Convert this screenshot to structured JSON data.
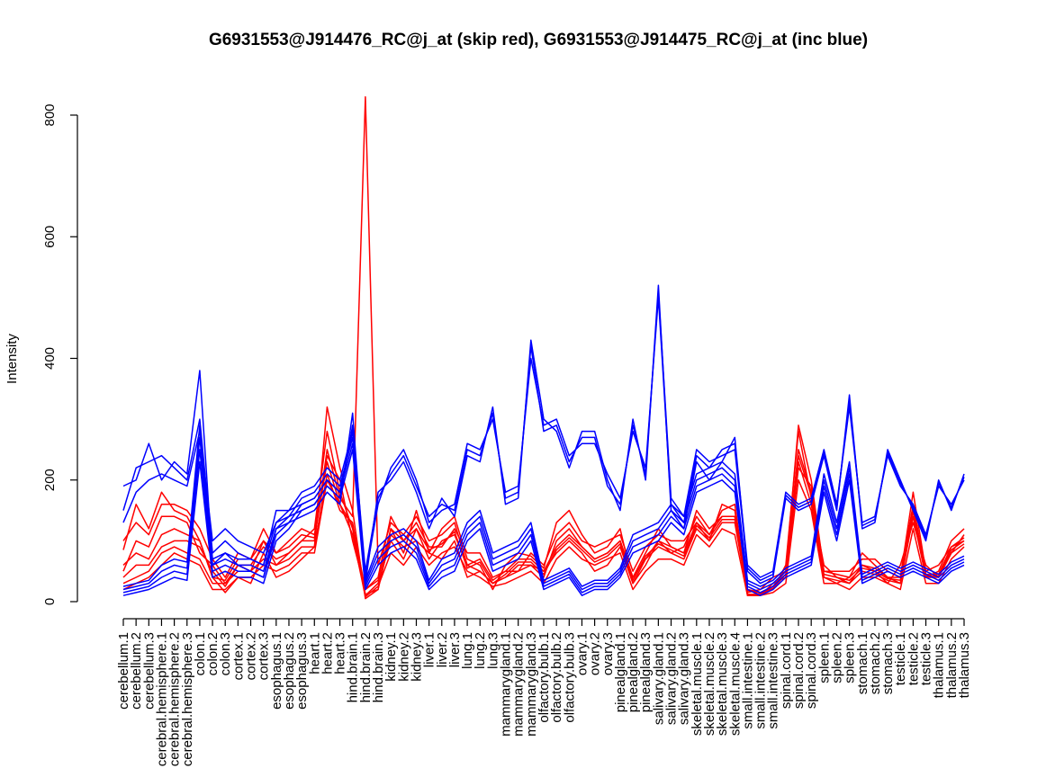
{
  "chart_data": {
    "type": "line",
    "title": "G6931553@J914476_RC@j_at (skip red), G6931553@J914475_RC@j_at (inc blue)",
    "xlabel": "",
    "ylabel": "Intensity",
    "ylim": [
      0,
      800
    ],
    "yticks": [
      0,
      200,
      400,
      600,
      800
    ],
    "grid": false,
    "legend": "none",
    "colors": {
      "skip": "#ff0000",
      "inc": "#0000ff"
    },
    "categories": [
      "cerebellum.1",
      "cerebellum.2",
      "cerebellum.3",
      "cerebral.hemisphere.1",
      "cerebral.hemisphere.2",
      "cerebral.hemisphere.3",
      "colon.1",
      "colon.2",
      "colon.3",
      "cortex.1",
      "cortex.2",
      "cortex.3",
      "esophagus.1",
      "esophagus.2",
      "esophagus.3",
      "heart.1",
      "heart.2",
      "heart.3",
      "hind.brain.1",
      "hind.brain.2",
      "hind.brain.3",
      "kidney.1",
      "kidney.2",
      "kidney.3",
      "liver.1",
      "liver.2",
      "liver.3",
      "lung.1",
      "lung.2",
      "lung.3",
      "mammarygland.1",
      "mammarygland.2",
      "mammarygland.3",
      "olfactory.bulb.1",
      "olfactory.bulb.2",
      "olfactory.bulb.3",
      "ovary.1",
      "ovary.2",
      "ovary.3",
      "pinealgland.1",
      "pinealgland.2",
      "pinealgland.3",
      "salivary.gland.1",
      "salivary.gland.2",
      "salivary.gland.3",
      "skeletal.muscle.1",
      "skeletal.muscle.2",
      "skeletal.muscle.3",
      "skeletal.muscle.4",
      "small.intestine.1",
      "small.intestine.2",
      "small.intestine.3",
      "spinal.cord.1",
      "spinal.cord.2",
      "spinal.cord.3",
      "spleen.1",
      "spleen.2",
      "spleen.3",
      "stomach.1",
      "stomach.2",
      "stomach.3",
      "testicle.1",
      "testicle.2",
      "testicle.3",
      "thalamus.1",
      "thalamus.2",
      "thalamus.3"
    ],
    "series": [
      {
        "group": "skip",
        "values": [
          85,
          160,
          120,
          180,
          150,
          140,
          100,
          40,
          15,
          40,
          30,
          80,
          40,
          50,
          70,
          90,
          320,
          220,
          150,
          5,
          20,
          120,
          80,
          150,
          80,
          120,
          140,
          70,
          60,
          20,
          60,
          80,
          75,
          55,
          130,
          150,
          110,
          80,
          90,
          120,
          30,
          60,
          100,
          80,
          90,
          140,
          110,
          150,
          160,
          10,
          10,
          30,
          40,
          220,
          190,
          40,
          30,
          40,
          80,
          60,
          40,
          30,
          150,
          40,
          50,
          100,
          120
        ]
      },
      {
        "group": "skip",
        "values": [
          50,
          100,
          90,
          140,
          140,
          130,
          80,
          60,
          30,
          60,
          50,
          100,
          60,
          80,
          100,
          120,
          280,
          180,
          120,
          10,
          30,
          100,
          70,
          120,
          70,
          100,
          110,
          60,
          50,
          30,
          40,
          60,
          60,
          40,
          100,
          120,
          90,
          70,
          80,
          100,
          40,
          80,
          120,
          90,
          80,
          150,
          120,
          140,
          140,
          20,
          15,
          20,
          60,
          280,
          170,
          60,
          40,
          30,
          60,
          50,
          30,
          60,
          130,
          60,
          40,
          80,
          110
        ]
      },
      {
        "group": "skip",
        "values": [
          100,
          130,
          110,
          160,
          160,
          150,
          120,
          70,
          40,
          80,
          70,
          120,
          80,
          100,
          120,
          110,
          240,
          200,
          100,
          20,
          40,
          140,
          100,
          130,
          90,
          90,
          120,
          80,
          80,
          40,
          50,
          50,
          80,
          60,
          110,
          130,
          100,
          90,
          100,
          110,
          50,
          90,
          110,
          100,
          100,
          130,
          100,
          160,
          150,
          15,
          20,
          40,
          50,
          290,
          200,
          50,
          50,
          50,
          70,
          70,
          50,
          40,
          180,
          50,
          60,
          90,
          100
        ]
      },
      {
        "group": "skip",
        "values": [
          20,
          30,
          40,
          60,
          80,
          70,
          60,
          20,
          20,
          40,
          40,
          60,
          50,
          60,
          80,
          80,
          200,
          160,
          110,
          8,
          25,
          80,
          60,
          90,
          60,
          80,
          90,
          50,
          40,
          25,
          30,
          40,
          50,
          30,
          70,
          90,
          70,
          60,
          70,
          80,
          20,
          50,
          70,
          70,
          60,
          110,
          90,
          120,
          110,
          10,
          10,
          15,
          30,
          200,
          150,
          30,
          30,
          20,
          40,
          40,
          30,
          20,
          120,
          30,
          30,
          70,
          90
        ]
      },
      {
        "group": "skip",
        "values": [
          30,
          40,
          50,
          80,
          90,
          80,
          70,
          30,
          30,
          50,
          50,
          70,
          60,
          70,
          90,
          90,
          210,
          150,
          130,
          12,
          20,
          110,
          90,
          100,
          80,
          70,
          100,
          40,
          50,
          30,
          40,
          50,
          60,
          50,
          80,
          100,
          80,
          50,
          60,
          90,
          30,
          70,
          90,
          80,
          70,
          120,
          100,
          130,
          130,
          12,
          12,
          20,
          40,
          230,
          160,
          40,
          35,
          30,
          50,
          45,
          35,
          30,
          140,
          40,
          40,
          80,
          95
        ]
      },
      {
        "group": "skip",
        "values": [
          40,
          60,
          60,
          90,
          100,
          100,
          90,
          50,
          25,
          60,
          60,
          90,
          70,
          80,
          100,
          100,
          250,
          170,
          140,
          830,
          60,
          130,
          110,
          140,
          100,
          110,
          130,
          60,
          70,
          35,
          50,
          70,
          70,
          50,
          90,
          110,
          90,
          70,
          80,
          100,
          40,
          70,
          100,
          90,
          80,
          130,
          110,
          140,
          140,
          20,
          15,
          25,
          50,
          250,
          180,
          50,
          45,
          40,
          60,
          55,
          40,
          40,
          160,
          45,
          45,
          90,
          105
        ]
      },
      {
        "group": "skip",
        "values": [
          60,
          80,
          70,
          110,
          120,
          110,
          100,
          40,
          35,
          70,
          70,
          100,
          80,
          90,
          110,
          105,
          230,
          160,
          125,
          20,
          35,
          120,
          100,
          120,
          85,
          95,
          115,
          55,
          65,
          30,
          45,
          65,
          65,
          45,
          85,
          105,
          85,
          65,
          75,
          95,
          35,
          75,
          95,
          85,
          75,
          125,
          105,
          135,
          135,
          18,
          14,
          22,
          45,
          240,
          175,
          45,
          40,
          35,
          55,
          50,
          38,
          35,
          150,
          42,
          42,
          85,
          100
        ]
      },
      {
        "group": "inc",
        "values": [
          190,
          200,
          260,
          200,
          230,
          210,
          380,
          60,
          80,
          60,
          50,
          40,
          120,
          130,
          140,
          150,
          180,
          160,
          310,
          30,
          180,
          200,
          230,
          180,
          120,
          170,
          140,
          240,
          230,
          320,
          160,
          170,
          430,
          300,
          280,
          220,
          280,
          280,
          200,
          150,
          300,
          200,
          520,
          150,
          120,
          230,
          200,
          230,
          270,
          50,
          30,
          40,
          170,
          150,
          160,
          240,
          150,
          340,
          120,
          130,
          250,
          200,
          150,
          100,
          200,
          150,
          210
        ]
      },
      {
        "group": "inc",
        "values": [
          150,
          220,
          230,
          240,
          220,
          200,
          300,
          80,
          100,
          80,
          70,
          60,
          150,
          150,
          160,
          170,
          200,
          180,
          280,
          40,
          160,
          220,
          250,
          200,
          130,
          150,
          160,
          260,
          250,
          300,
          180,
          190,
          400,
          290,
          300,
          240,
          260,
          260,
          210,
          170,
          280,
          220,
          500,
          160,
          130,
          240,
          220,
          250,
          260,
          60,
          40,
          50,
          180,
          160,
          170,
          250,
          160,
          320,
          130,
          140,
          240,
          190,
          160,
          110,
          190,
          160,
          200
        ]
      },
      {
        "group": "inc",
        "values": [
          130,
          180,
          200,
          210,
          200,
          190,
          280,
          100,
          120,
          100,
          90,
          80,
          130,
          140,
          150,
          160,
          190,
          170,
          290,
          50,
          170,
          210,
          240,
          190,
          140,
          160,
          150,
          250,
          240,
          310,
          170,
          180,
          420,
          280,
          290,
          230,
          270,
          270,
          190,
          160,
          290,
          210,
          510,
          170,
          140,
          250,
          230,
          240,
          250,
          55,
          35,
          45,
          175,
          155,
          165,
          245,
          155,
          330,
          125,
          135,
          245,
          195,
          155,
          105,
          195,
          155,
          205
        ]
      },
      {
        "group": "inc",
        "values": [
          10,
          15,
          20,
          30,
          40,
          35,
          230,
          40,
          50,
          40,
          40,
          30,
          100,
          120,
          150,
          160,
          190,
          170,
          250,
          20,
          60,
          80,
          90,
          70,
          20,
          40,
          50,
          100,
          120,
          50,
          60,
          70,
          100,
          20,
          30,
          40,
          10,
          20,
          20,
          40,
          80,
          90,
          100,
          130,
          110,
          180,
          190,
          200,
          180,
          20,
          10,
          20,
          40,
          50,
          60,
          180,
          100,
          200,
          30,
          40,
          50,
          40,
          50,
          40,
          30,
          50,
          60
        ]
      },
      {
        "group": "inc",
        "values": [
          15,
          20,
          25,
          40,
          50,
          45,
          250,
          50,
          60,
          50,
          50,
          40,
          110,
          130,
          160,
          170,
          200,
          180,
          260,
          25,
          70,
          90,
          100,
          80,
          25,
          50,
          60,
          110,
          130,
          60,
          70,
          80,
          110,
          25,
          35,
          45,
          15,
          25,
          25,
          45,
          90,
          100,
          110,
          140,
          120,
          190,
          200,
          210,
          190,
          25,
          15,
          25,
          45,
          55,
          65,
          190,
          110,
          210,
          35,
          45,
          55,
          45,
          55,
          45,
          35,
          55,
          65
        ]
      },
      {
        "group": "inc",
        "values": [
          20,
          25,
          30,
          50,
          60,
          55,
          270,
          60,
          70,
          60,
          60,
          50,
          120,
          140,
          170,
          180,
          210,
          190,
          270,
          30,
          80,
          100,
          110,
          90,
          30,
          60,
          70,
          120,
          140,
          70,
          80,
          90,
          120,
          30,
          40,
          50,
          20,
          30,
          30,
          50,
          100,
          110,
          120,
          150,
          130,
          200,
          210,
          220,
          200,
          30,
          20,
          30,
          50,
          60,
          70,
          200,
          120,
          220,
          40,
          50,
          60,
          50,
          60,
          50,
          40,
          60,
          70
        ]
      },
      {
        "group": "inc",
        "values": [
          25,
          30,
          35,
          60,
          70,
          65,
          290,
          70,
          80,
          70,
          70,
          60,
          130,
          150,
          180,
          190,
          220,
          200,
          280,
          35,
          90,
          110,
          120,
          100,
          35,
          70,
          80,
          130,
          150,
          80,
          90,
          100,
          130,
          35,
          45,
          55,
          25,
          35,
          35,
          55,
          110,
          120,
          130,
          160,
          140,
          210,
          220,
          230,
          210,
          35,
          25,
          35,
          55,
          65,
          75,
          210,
          130,
          230,
          45,
          55,
          65,
          55,
          65,
          55,
          45,
          65,
          75
        ]
      }
    ]
  }
}
